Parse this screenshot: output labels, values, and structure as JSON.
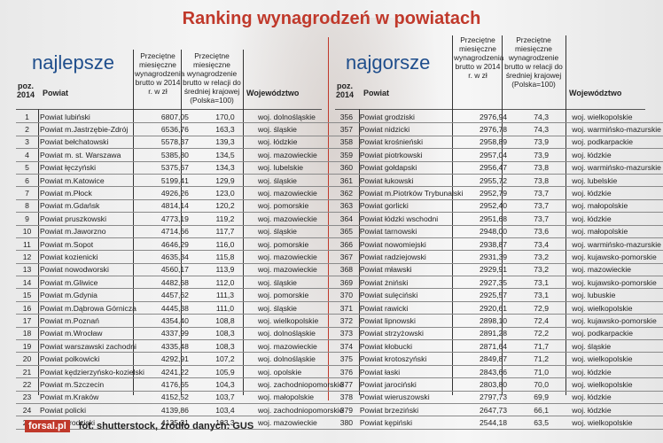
{
  "title": "Ranking wynagrodzeń w powiatach",
  "left": {
    "heading": "najlepsze",
    "columns": {
      "pos": "poz. 2014",
      "powiat": "Powiat",
      "salary": "Przeciętne miesięczne wynagrodzenia brutto w 2014 r. w zł",
      "ratio": "Przeciętne miesięczne wynagrodzenie brutto w relacji do średniej krajowej (Polska=100)",
      "woj": "Województwo"
    },
    "rows": [
      [
        "1",
        "Powiat lubiński",
        "6807,05",
        "170,0",
        "woj. dolnośląskie"
      ],
      [
        "2",
        "Powiat m.Jastrzębie-Zdrój",
        "6536,76",
        "163,3",
        "woj. śląskie"
      ],
      [
        "3",
        "Powiat bełchatowski",
        "5578,37",
        "139,3",
        "woj. łódzkie"
      ],
      [
        "4",
        "Powiat m. st. Warszawa",
        "5385,80",
        "134,5",
        "woj. mazowieckie"
      ],
      [
        "5",
        "Powiat łęczyński",
        "5375,67",
        "134,3",
        "woj. lubelskie"
      ],
      [
        "6",
        "Powiat m.Katowice",
        "5199,41",
        "129,9",
        "woj. śląskie"
      ],
      [
        "7",
        "Powiat m.Płock",
        "4926,26",
        "123,0",
        "woj. mazowieckie"
      ],
      [
        "8",
        "Powiat m.Gdańsk",
        "4814,14",
        "120,2",
        "woj. pomorskie"
      ],
      [
        "9",
        "Powiat pruszkowski",
        "4773,19",
        "119,2",
        "woj. mazowieckie"
      ],
      [
        "10",
        "Powiat m.Jaworzno",
        "4714,66",
        "117,7",
        "woj. śląskie"
      ],
      [
        "11",
        "Powiat m.Sopot",
        "4646,29",
        "116,0",
        "woj. pomorskie"
      ],
      [
        "12",
        "Powiat kozienicki",
        "4635,34",
        "115,8",
        "woj. mazowieckie"
      ],
      [
        "13",
        "Powiat nowodworski",
        "4560,17",
        "113,9",
        "woj. mazowieckie"
      ],
      [
        "14",
        "Powiat m.Gliwice",
        "4482,68",
        "112,0",
        "woj. śląskie"
      ],
      [
        "15",
        "Powiat m.Gdynia",
        "4457,62",
        "111,3",
        "woj. pomorskie"
      ],
      [
        "16",
        "Powiat m.Dąbrowa Górnicza",
        "4445,38",
        "111,0",
        "woj. śląskie"
      ],
      [
        "17",
        "Powiat m.Poznań",
        "4354,40",
        "108,8",
        "woj. wielkopolskie"
      ],
      [
        "18",
        "Powiat m.Wrocław",
        "4337,99",
        "108,3",
        "woj. dolnośląskie"
      ],
      [
        "19",
        "Powiat warszawski zachodni",
        "4335,48",
        "108,3",
        "woj. mazowieckie"
      ],
      [
        "20",
        "Powiat polkowicki",
        "4292,91",
        "107,2",
        "woj. dolnośląskie"
      ],
      [
        "21",
        "Powiat kędzierzyńsko-kozielski",
        "4241,22",
        "105,9",
        "woj. opolskie"
      ],
      [
        "22",
        "Powiat m.Szczecin",
        "4176,65",
        "104,3",
        "woj. zachodniopomorskie"
      ],
      [
        "23",
        "Powiat m.Kraków",
        "4152,52",
        "103,7",
        "woj. małopolskie"
      ],
      [
        "24",
        "Powiat policki",
        "4139,86",
        "103,4",
        "woj. zachodniopomorskie"
      ],
      [
        "25",
        "Powiat grodziski",
        "4135,31",
        "103,3",
        "woj. mazowieckie"
      ]
    ]
  },
  "right": {
    "heading": "najgorsze",
    "columns": {
      "pos": "poz. 2014",
      "powiat": "Powiat",
      "salary": "Przeciętne miesięczne wynagrodzenia brutto w 2014 r. w zł",
      "ratio": "Przeciętne miesięczne wynagrodzenie brutto w relacji do średniej krajowej (Polska=100)",
      "woj": "Województwo"
    },
    "rows": [
      [
        "356",
        "Powiat grodziski",
        "2976,94",
        "74,3",
        "woj. wielkopolskie"
      ],
      [
        "357",
        "Powiat nidzicki",
        "2976,78",
        "74,3",
        "woj. warmińsko-mazurskie"
      ],
      [
        "358",
        "Powiat krośnieński",
        "2958,89",
        "73,9",
        "woj. podkarpackie"
      ],
      [
        "359",
        "Powiat piotrkowski",
        "2957,04",
        "73,9",
        "woj. łódzkie"
      ],
      [
        "360",
        "Powiat gołdapski",
        "2956,47",
        "73,8",
        "woj. warmińsko-mazurskie"
      ],
      [
        "361",
        "Powiat łukowski",
        "2955,72",
        "73,8",
        "woj. lubelskie"
      ],
      [
        "362",
        "Powiat m.Piotrków Trybunalski",
        "2952,79",
        "73,7",
        "woj. łódzkie"
      ],
      [
        "363",
        "Powiat gorlicki",
        "2952,40",
        "73,7",
        "woj. małopolskie"
      ],
      [
        "364",
        "Powiat łódzki wschodni",
        "2951,68",
        "73,7",
        "woj. łódzkie"
      ],
      [
        "365",
        "Powiat tarnowski",
        "2948,00",
        "73,6",
        "woj. małopolskie"
      ],
      [
        "366",
        "Powiat nowomiejski",
        "2938,87",
        "73,4",
        "woj. warmińsko-mazurskie"
      ],
      [
        "367",
        "Powiat radziejowski",
        "2931,39",
        "73,2",
        "woj. kujawsko-pomorskie"
      ],
      [
        "368",
        "Powiat mławski",
        "2929,91",
        "73,2",
        "woj. mazowieckie"
      ],
      [
        "369",
        "Powiat żniński",
        "2927,35",
        "73,1",
        "woj. kujawsko-pomorskie"
      ],
      [
        "370",
        "Powiat sulęciński",
        "2925,57",
        "73,1",
        "woj. lubuskie"
      ],
      [
        "371",
        "Powiat rawicki",
        "2920,61",
        "72,9",
        "woj. wielkopolskie"
      ],
      [
        "372",
        "Powiat lipnowski",
        "2898,10",
        "72,4",
        "woj. kujawsko-pomorskie"
      ],
      [
        "373",
        "Powiat strzyżowski",
        "2891,28",
        "72,2",
        "woj. podkarpackie"
      ],
      [
        "374",
        "Powiat kłobucki",
        "2871,64",
        "71,7",
        "woj. śląskie"
      ],
      [
        "375",
        "Powiat krotoszyński",
        "2849,87",
        "71,2",
        "woj. wielkopolskie"
      ],
      [
        "376",
        "Powiat łaski",
        "2843,66",
        "71,0",
        "woj. łódzkie"
      ],
      [
        "377",
        "Powiat jarociński",
        "2803,80",
        "70,0",
        "woj. wielkopolskie"
      ],
      [
        "378",
        "Powiat wieruszowski",
        "2797,73",
        "69,9",
        "woj. łódzkie"
      ],
      [
        "379",
        "Powiat brzeziński",
        "2647,73",
        "66,1",
        "woj. łódzkie"
      ],
      [
        "380",
        "Powiat kępiński",
        "2544,18",
        "63,5",
        "woj. wielkopolskie"
      ]
    ]
  },
  "footer": {
    "logo": "forsal.pl",
    "credit": "fot. shutterstock,   źródło danych: GUS"
  }
}
